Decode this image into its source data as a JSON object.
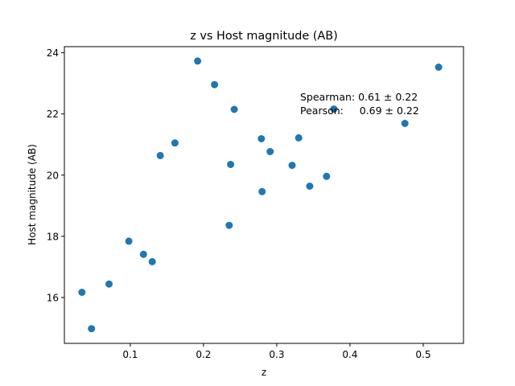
{
  "chart_data": {
    "type": "scatter",
    "title": "z vs Host magnitude (AB)",
    "xlabel": "z",
    "ylabel": "Host magnitude (AB)",
    "xlim": [
      0.01,
      0.555
    ],
    "ylim": [
      14.5,
      24.2
    ],
    "xticks": [
      0.1,
      0.2,
      0.3,
      0.4,
      0.5
    ],
    "xtick_labels": [
      "0.1",
      "0.2",
      "0.3",
      "0.4",
      "0.5"
    ],
    "yticks": [
      16,
      18,
      20,
      22,
      24
    ],
    "ytick_labels": [
      "16",
      "18",
      "20",
      "22",
      "24"
    ],
    "grid": false,
    "marker_color": "#1f77b4",
    "points": [
      {
        "x": 0.034,
        "y": 16.17
      },
      {
        "x": 0.047,
        "y": 14.98
      },
      {
        "x": 0.071,
        "y": 16.44
      },
      {
        "x": 0.098,
        "y": 17.84
      },
      {
        "x": 0.118,
        "y": 17.41
      },
      {
        "x": 0.13,
        "y": 17.17
      },
      {
        "x": 0.141,
        "y": 20.64
      },
      {
        "x": 0.161,
        "y": 21.05
      },
      {
        "x": 0.192,
        "y": 23.73
      },
      {
        "x": 0.215,
        "y": 22.96
      },
      {
        "x": 0.235,
        "y": 18.36
      },
      {
        "x": 0.237,
        "y": 20.35
      },
      {
        "x": 0.242,
        "y": 22.15
      },
      {
        "x": 0.279,
        "y": 21.19
      },
      {
        "x": 0.28,
        "y": 19.46
      },
      {
        "x": 0.291,
        "y": 20.77
      },
      {
        "x": 0.321,
        "y": 20.32
      },
      {
        "x": 0.33,
        "y": 21.22
      },
      {
        "x": 0.345,
        "y": 19.64
      },
      {
        "x": 0.368,
        "y": 19.96
      },
      {
        "x": 0.378,
        "y": 22.16
      },
      {
        "x": 0.475,
        "y": 21.69
      },
      {
        "x": 0.521,
        "y": 23.53
      }
    ],
    "annotations": [
      "Spearman: 0.61 ± 0.22",
      "Pearson:     0.69 ± 0.22"
    ]
  }
}
